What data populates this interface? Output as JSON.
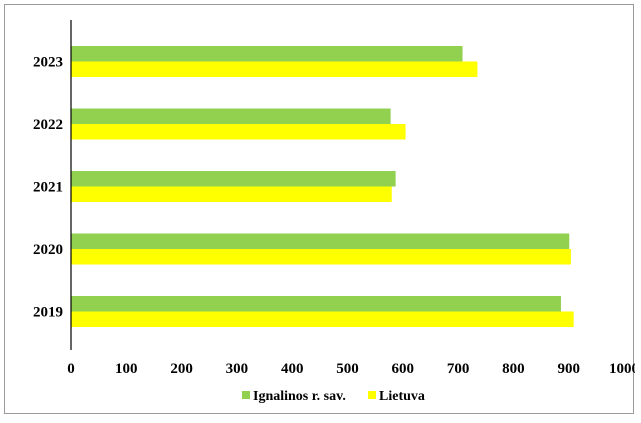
{
  "chart_data": {
    "type": "bar",
    "orientation": "horizontal",
    "categories": [
      "2023",
      "2022",
      "2021",
      "2020",
      "2019"
    ],
    "series": [
      {
        "name": "Ignalinos r. sav.",
        "values": [
          708,
          578,
          587,
          901,
          886
        ]
      },
      {
        "name": "Lietuva",
        "values": [
          735,
          605,
          580,
          904,
          909
        ]
      }
    ],
    "title": "",
    "xlabel": "",
    "ylabel": "",
    "xlim": [
      0,
      1000
    ],
    "x_ticks": [
      0,
      100,
      200,
      300,
      400,
      500,
      600,
      700,
      800,
      900,
      1000
    ],
    "grid": false,
    "legend_position": "bottom",
    "colors": {
      "Ignalinos r. sav.": "#92d050",
      "Lietuva": "#ffff00"
    }
  }
}
